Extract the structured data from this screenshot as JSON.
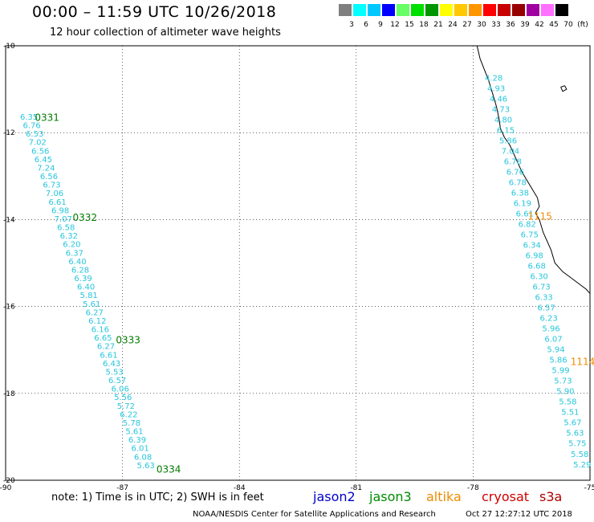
{
  "header": {
    "title": "00:00 – 11:59 UTC 10/26/2018",
    "subtitle": "12 hour collection of altimeter wave heights"
  },
  "scale": {
    "colors": [
      "#7f7f7f",
      "#00ffff",
      "#00c8ff",
      "#0000ff",
      "#66ff66",
      "#00e000",
      "#009600",
      "#ffff00",
      "#ffc800",
      "#ff9600",
      "#ff0000",
      "#c80000",
      "#960000",
      "#a000a0",
      "#ff70ff",
      "#000000"
    ],
    "labels": [
      "3",
      "6",
      "9",
      "12",
      "15",
      "18",
      "21",
      "24",
      "27",
      "30",
      "33",
      "36",
      "39",
      "42",
      "45",
      "70",
      "(ft)"
    ]
  },
  "map": {
    "lon_range": [
      -90,
      -75
    ],
    "lat_range": [
      -20,
      -10
    ],
    "lon_ticks": [
      "-90",
      "-87",
      "-84",
      "-81",
      "-78",
      "-75"
    ],
    "lat_ticks": [
      "-10",
      "-12",
      "-14",
      "-16",
      "-18",
      "-20"
    ],
    "track_color": "#27c6dc",
    "time_color": "#007a00",
    "altika_color": "#f08c00",
    "track_west": {
      "start": [
        -89.63,
        -11.7
      ],
      "end": [
        -86.63,
        -19.72
      ],
      "values": [
        "6.35",
        "6.76",
        "6.53",
        "7.02",
        "6.56",
        "6.45",
        "7.24",
        "6.56",
        "6.73",
        "7.06",
        "6.61",
        "6.98",
        "7.07",
        "6.58",
        "6.32",
        "6.20",
        "6.37",
        "6.40",
        "6.28",
        "6.39",
        "6.40",
        "5.81",
        "5.61",
        "6.27",
        "6.12",
        "6.16",
        "6.65",
        "6.27",
        "6.61",
        "6.43",
        "5.53",
        "6.57",
        "6.06",
        "5.56",
        "5.72",
        "6.22",
        "5.78",
        "5.61",
        "6.39",
        "6.01",
        "6.08",
        "5.63"
      ],
      "times": [
        {
          "text": "0331",
          "lon": -89.25,
          "lat": -11.73
        },
        {
          "text": "0332",
          "lon": -88.28,
          "lat": -14.03
        },
        {
          "text": "0333",
          "lon": -87.17,
          "lat": -16.85
        },
        {
          "text": "0334",
          "lon": -86.13,
          "lat": -19.82
        }
      ]
    },
    "track_east": {
      "start": [
        -77.7,
        -10.8
      ],
      "end": [
        -75.43,
        -19.7
      ],
      "values": [
        "4.28",
        "4.93",
        "4.46",
        "4.73",
        "4.80",
        "6.15",
        "5.86",
        "7.04",
        "6.78",
        "6.76",
        "6.78",
        "6.38",
        "6.19",
        "6.61",
        "6.82",
        "6.75",
        "6.34",
        "6.98",
        "6.68",
        "6.30",
        "6.73",
        "6.33",
        "6.57",
        "6.23",
        "5.96",
        "6.07",
        "5.94",
        "5.86",
        "5.99",
        "5.73",
        "5.90",
        "5.58",
        "5.51",
        "5.67",
        "5.63",
        "5.75",
        "5.58",
        "5.29"
      ],
      "times": [
        {
          "text": "1115",
          "lon": -76.6,
          "lat": -14.0
        },
        {
          "text": "1114",
          "lon": -75.5,
          "lat": -17.35
        }
      ]
    },
    "coastline": [
      [
        -77.9,
        -10.0
      ],
      [
        -77.82,
        -10.3
      ],
      [
        -77.6,
        -10.8
      ],
      [
        -77.5,
        -11.1
      ],
      [
        -77.4,
        -11.4
      ],
      [
        -77.33,
        -11.7
      ],
      [
        -77.3,
        -11.9
      ],
      [
        -77.2,
        -12.1
      ],
      [
        -77.05,
        -12.3
      ],
      [
        -76.9,
        -12.6
      ],
      [
        -76.75,
        -12.9
      ],
      [
        -76.55,
        -13.2
      ],
      [
        -76.35,
        -13.5
      ],
      [
        -76.3,
        -13.7
      ],
      [
        -76.4,
        -13.85
      ],
      [
        -76.3,
        -14.0
      ],
      [
        -76.2,
        -14.3
      ],
      [
        -76.0,
        -14.7
      ],
      [
        -75.9,
        -15.0
      ],
      [
        -75.7,
        -15.2
      ],
      [
        -75.4,
        -15.4
      ],
      [
        -75.1,
        -15.6
      ],
      [
        -75.0,
        -15.7
      ]
    ],
    "island": [
      [
        -75.75,
        -10.95
      ],
      [
        -75.65,
        -10.92
      ],
      [
        -75.6,
        -11.0
      ],
      [
        -75.7,
        -11.05
      ],
      [
        -75.75,
        -10.95
      ]
    ]
  },
  "footer": {
    "note": "note:  1) Time is in UTC;  2) SWH is in feet",
    "legend": [
      {
        "label": "jason2",
        "color": "#0000cc"
      },
      {
        "label": "jason3",
        "color": "#008a00"
      },
      {
        "label": "altika",
        "color": "#f08c00"
      },
      {
        "label": "cryosat",
        "color": "#d00000"
      },
      {
        "label": "s3a",
        "color": "#b00000"
      }
    ],
    "credit": "NOAA/NESDIS Center for Satellite Applications and Research",
    "date": "Oct 27 12:27:12 UTC 2018"
  }
}
